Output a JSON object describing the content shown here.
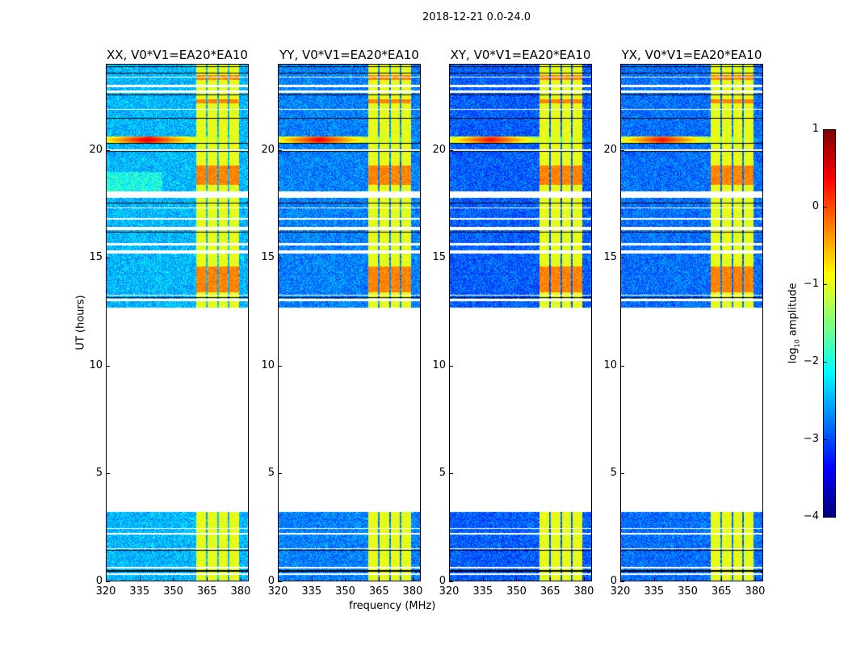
{
  "chart_data": {
    "type": "heatmap",
    "title": "2018-12-21 0.0-24.0",
    "xlabel": "frequency (MHz)",
    "ylabel": "UT (hours)",
    "xlim": [
      320,
      383.6
    ],
    "ylim": [
      0,
      24
    ],
    "xticks": [
      "320",
      "335",
      "350",
      "365",
      "380"
    ],
    "xtick_values": [
      320,
      335,
      350,
      365,
      380
    ],
    "yticks": [
      "0",
      "5",
      "10",
      "15",
      "20"
    ],
    "ytick_values": [
      0,
      5,
      10,
      15,
      20
    ],
    "colorbar": {
      "label_main": "log",
      "label_sub": "10",
      "label_rest": " amplitude",
      "range": [
        -4,
        1
      ],
      "ticks": [
        "1",
        "0",
        "−1",
        "−2",
        "−3",
        "−4"
      ],
      "tick_values": [
        1,
        0,
        -1,
        -2,
        -3,
        -4
      ],
      "colormap": "jet"
    },
    "panels": [
      {
        "title": "XX, V0*V1=EA20*EA10",
        "background_level": -2.6,
        "rfi_level": 0.3
      },
      {
        "title": "YY, V0*V1=EA20*EA10",
        "background_level": -2.9,
        "rfi_level": 0.2
      },
      {
        "title": "XY, V0*V1=EA20*EA10",
        "background_level": -3.1,
        "rfi_level": 0.1
      },
      {
        "title": "YX, V0*V1=EA20*EA10",
        "background_level": -3.0,
        "rfi_level": 0.1
      }
    ],
    "data_time_ranges_hours": [
      [
        0,
        3.2
      ],
      [
        12.7,
        24
      ]
    ],
    "flagged_time_ranges_hours": [
      [
        0.25,
        0.35
      ],
      [
        0.55,
        0.62
      ],
      [
        1.45,
        1.5
      ],
      [
        2.15,
        2.2
      ],
      [
        2.4,
        2.45
      ],
      [
        13.0,
        13.1
      ],
      [
        13.25,
        13.3
      ],
      [
        15.2,
        15.35
      ],
      [
        15.6,
        15.7
      ],
      [
        16.3,
        16.45
      ],
      [
        16.8,
        16.85
      ],
      [
        17.3,
        17.35
      ],
      [
        17.8,
        18.1
      ],
      [
        20.0,
        20.05
      ],
      [
        21.9,
        21.95
      ],
      [
        22.7,
        22.8
      ],
      [
        22.95,
        23.05
      ],
      [
        23.4,
        23.45
      ]
    ],
    "black_line_hours": [
      0.45,
      1.4,
      13.15,
      16.2,
      17.55,
      19.95,
      20.35,
      21.5,
      22.6,
      23.6,
      23.9
    ],
    "bright_channel_blocks_mhz": [
      [
        360.3,
        364.8
      ],
      [
        365.6,
        369.8
      ],
      [
        370.6,
        374.6
      ],
      [
        375.4,
        379.6
      ]
    ],
    "bright_block_level": -0.9,
    "hot_time_ranges_hours": [
      [
        18.4,
        19.3
      ],
      [
        13.4,
        14.6
      ],
      [
        22.2,
        22.4
      ],
      [
        23.3,
        23.5
      ]
    ],
    "hot_level": -0.1,
    "rfi_burst": {
      "freq_mhz": 338.5,
      "time_hours": 20.5
    }
  }
}
